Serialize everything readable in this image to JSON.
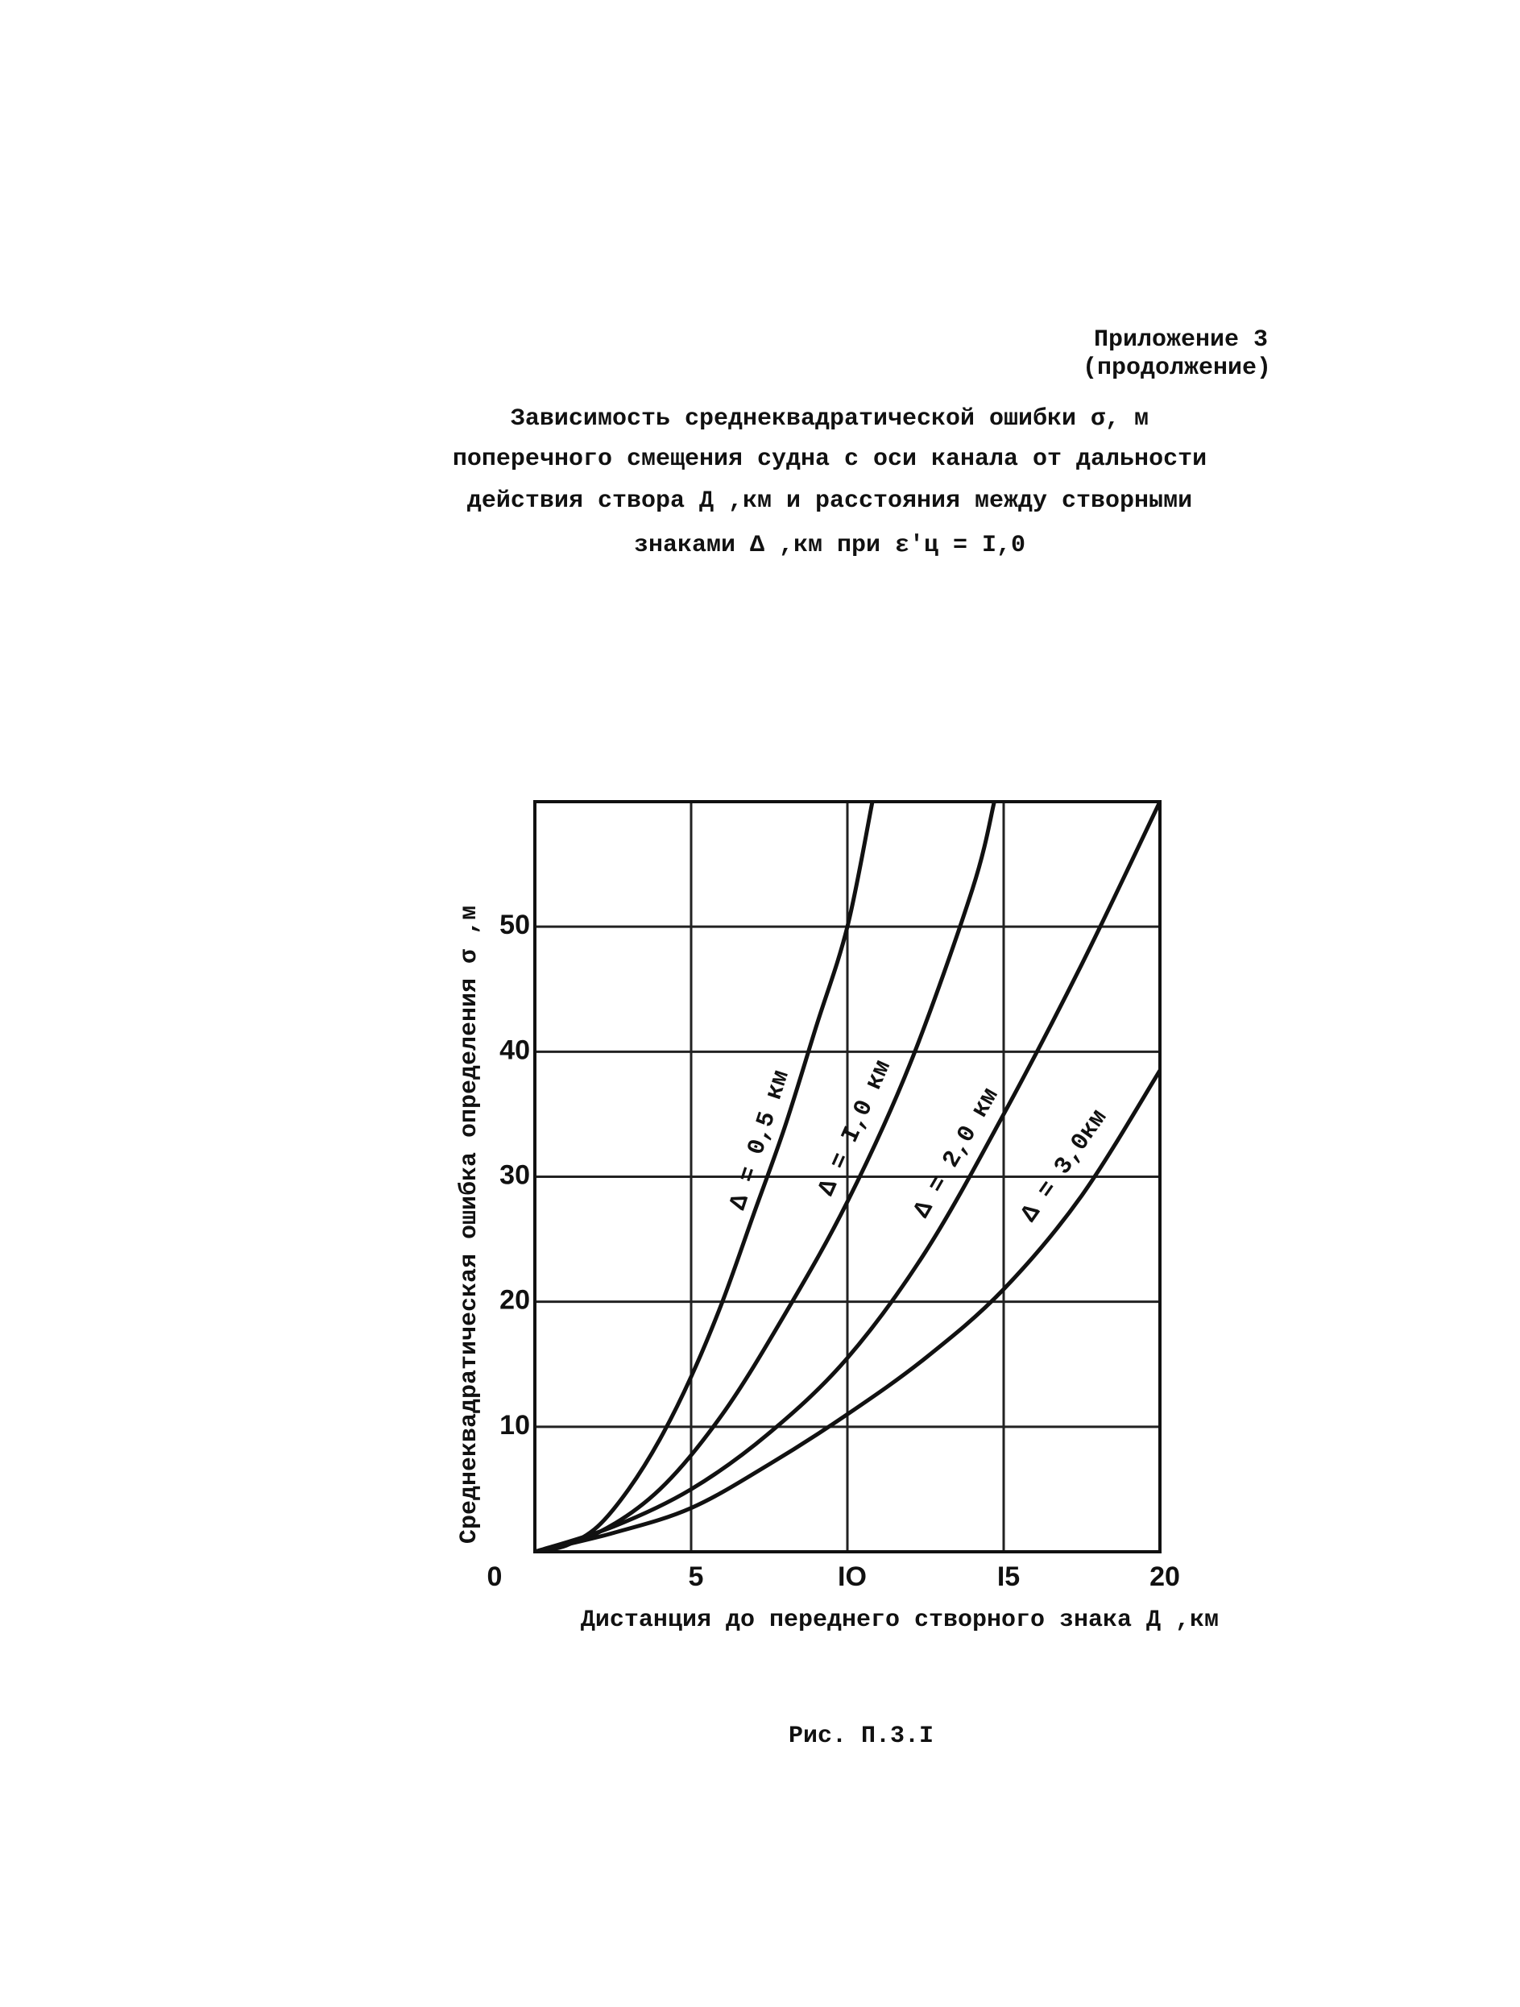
{
  "header": {
    "appendix": "Приложение 3",
    "note": "(продолжение)",
    "title_lines": [
      "Зависимость среднеквадратической ошибки σ, м",
      "поперечного смещения судна с оси канала от дальности",
      "действия створа Д ,км и расстояния между створными",
      "знаками Δ ,км при ε'ц = I,0"
    ]
  },
  "chart_data": {
    "type": "line",
    "y_label": "Среднеквадратическая ошибка определения σ ,м",
    "x_label": "Дистанция до переднего створного знака Д ,км",
    "xlim": [
      0,
      20
    ],
    "ylim": [
      0,
      60
    ],
    "xticks": [
      0,
      5,
      {
        "value": 10,
        "label": "IO"
      },
      {
        "value": 15,
        "label": "I5"
      },
      20
    ],
    "yticks": [
      10,
      20,
      30,
      40,
      50
    ],
    "grid": true,
    "series": [
      {
        "name": "Δ = 0,5 км",
        "color": "#111111",
        "x": [
          0,
          1,
          2,
          3,
          4,
          5,
          6,
          7,
          8,
          9,
          10,
          10.8
        ],
        "values": [
          0,
          0.5,
          2,
          5,
          9,
          14,
          20,
          27,
          34,
          42,
          50,
          60
        ]
      },
      {
        "name": "Δ = I,0 км",
        "color": "#111111",
        "x": [
          0,
          2,
          4,
          6,
          8,
          10,
          12,
          14,
          14.7
        ],
        "values": [
          0,
          1.5,
          5,
          11,
          19,
          28,
          39,
          53,
          60
        ]
      },
      {
        "name": "Δ = 2,0 км",
        "color": "#111111",
        "x": [
          0,
          2.5,
          5,
          7.5,
          10,
          12.5,
          15,
          17.5,
          20
        ],
        "values": [
          0,
          2,
          5,
          9.5,
          15.5,
          24,
          35,
          47,
          60
        ]
      },
      {
        "name": "Δ = 3,0км",
        "color": "#111111",
        "x": [
          0,
          2.5,
          5,
          7.5,
          10,
          12.5,
          15,
          17.5,
          20
        ],
        "values": [
          0,
          1.5,
          3.5,
          7,
          11,
          15.5,
          21,
          28.5,
          38.5
        ]
      }
    ],
    "caption": "Рис. П.3.I"
  }
}
